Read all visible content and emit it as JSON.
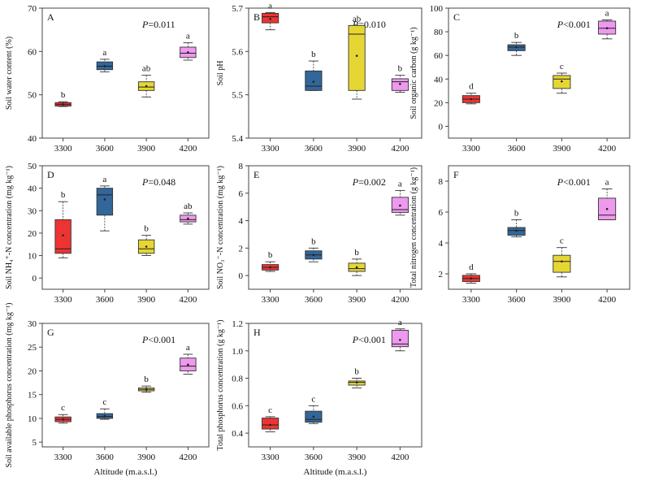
{
  "xlabel": "Altitude (m.a.s.l.)",
  "colors": {
    "3300": "#ee3333",
    "3600": "#336699",
    "3900": "#e6d633",
    "4200": "#ee99ee"
  },
  "chart_data": [
    {
      "type": "box",
      "panel": "A",
      "categories": [
        "3300",
        "3600",
        "3900",
        "4200"
      ],
      "ylabel": "Soil water content (%)",
      "pvalue": "P=0.011",
      "ylim": [
        40,
        70
      ],
      "yticks": [
        40,
        50,
        60,
        70
      ],
      "xlabel": "",
      "boxes": [
        {
          "min": 47.3,
          "q1": 47.4,
          "median": 47.8,
          "q3": 48.2,
          "max": 48.4,
          "mean": 47.8,
          "letter": "b"
        },
        {
          "min": 55.3,
          "q1": 55.8,
          "median": 56.6,
          "q3": 57.6,
          "max": 58.2,
          "mean": 56.6,
          "letter": "a"
        },
        {
          "min": 49.5,
          "q1": 51.0,
          "median": 51.8,
          "q3": 53.0,
          "max": 54.5,
          "mean": 52.0,
          "letter": "ab"
        },
        {
          "min": 58.0,
          "q1": 58.6,
          "median": 59.6,
          "q3": 61.0,
          "max": 62.0,
          "mean": 59.8,
          "letter": "a"
        }
      ]
    },
    {
      "type": "box",
      "panel": "B",
      "categories": [
        "3300",
        "3600",
        "3900",
        "4200"
      ],
      "ylabel": "Soil pH",
      "pvalue": "P=0.010",
      "ylim": [
        5.4,
        5.7
      ],
      "yticks": [
        5.4,
        5.5,
        5.6,
        5.7
      ],
      "xlabel": "",
      "boxes": [
        {
          "min": 5.65,
          "q1": 5.666,
          "median": 5.68,
          "q3": 5.688,
          "max": 5.69,
          "mean": 5.675,
          "letter": "a"
        },
        {
          "min": 5.51,
          "q1": 5.51,
          "median": 5.52,
          "q3": 5.555,
          "max": 5.578,
          "mean": 5.53,
          "letter": "b"
        },
        {
          "min": 5.49,
          "q1": 5.51,
          "median": 5.64,
          "q3": 5.66,
          "max": 5.66,
          "mean": 5.59,
          "letter": "ab"
        },
        {
          "min": 5.506,
          "q1": 5.51,
          "median": 5.53,
          "q3": 5.537,
          "max": 5.545,
          "mean": 5.525,
          "letter": "b"
        }
      ]
    },
    {
      "type": "box",
      "panel": "C",
      "categories": [
        "3300",
        "3600",
        "3900",
        "4200"
      ],
      "ylabel": "Soil organic carbon (g kg⁻¹)",
      "pvalue": "P<0.001",
      "ylim": [
        -10,
        100
      ],
      "yticks": [
        0,
        20,
        40,
        60,
        80,
        100
      ],
      "xlabel": "",
      "boxes": [
        {
          "min": 19,
          "q1": 20,
          "median": 23,
          "q3": 26,
          "max": 28,
          "mean": 23,
          "letter": "d"
        },
        {
          "min": 60,
          "q1": 64,
          "median": 67,
          "q3": 69,
          "max": 71,
          "mean": 67,
          "letter": "b"
        },
        {
          "min": 28,
          "q1": 32,
          "median": 40,
          "q3": 43,
          "max": 45,
          "mean": 38,
          "letter": "c"
        },
        {
          "min": 74,
          "q1": 78,
          "median": 83,
          "q3": 89,
          "max": 90,
          "mean": 83,
          "letter": "a"
        }
      ]
    },
    {
      "type": "box",
      "panel": "D",
      "categories": [
        "3300",
        "3600",
        "3900",
        "4200"
      ],
      "ylabel": "Soil NH₄⁺-N concentration (mg kg⁻¹)",
      "pvalue": "P=0.048",
      "ylim": [
        -5,
        50
      ],
      "yticks": [
        0,
        10,
        20,
        30,
        40,
        50
      ],
      "xlabel": "",
      "boxes": [
        {
          "min": 9,
          "q1": 11,
          "median": 13,
          "q3": 26,
          "max": 34,
          "mean": 19,
          "letter": "b"
        },
        {
          "min": 21,
          "q1": 28,
          "median": 37,
          "q3": 40,
          "max": 41,
          "mean": 35,
          "letter": "a"
        },
        {
          "min": 10,
          "q1": 11,
          "median": 13,
          "q3": 17,
          "max": 19,
          "mean": 14,
          "letter": "b"
        },
        {
          "min": 24,
          "q1": 25,
          "median": 26,
          "q3": 28,
          "max": 29,
          "mean": 26.5,
          "letter": "ab"
        }
      ]
    },
    {
      "type": "box",
      "panel": "E",
      "categories": [
        "3300",
        "3600",
        "3900",
        "4200"
      ],
      "ylabel": "Soil NO₃⁻-N concentration (mg kg⁻¹)",
      "pvalue": "P=0.002",
      "ylim": [
        -1,
        8
      ],
      "yticks": [
        0,
        2,
        4,
        6,
        8
      ],
      "xlabel": "",
      "boxes": [
        {
          "min": 0.3,
          "q1": 0.4,
          "median": 0.6,
          "q3": 0.8,
          "max": 1.0,
          "mean": 0.6,
          "letter": "b"
        },
        {
          "min": 1.0,
          "q1": 1.2,
          "median": 1.5,
          "q3": 1.8,
          "max": 2.0,
          "mean": 1.5,
          "letter": "b"
        },
        {
          "min": 0.0,
          "q1": 0.3,
          "median": 0.5,
          "q3": 0.9,
          "max": 1.2,
          "mean": 0.6,
          "letter": "b"
        },
        {
          "min": 4.4,
          "q1": 4.6,
          "median": 4.8,
          "q3": 5.7,
          "max": 6.2,
          "mean": 5.1,
          "letter": "a"
        }
      ]
    },
    {
      "type": "box",
      "panel": "F",
      "categories": [
        "3300",
        "3600",
        "3900",
        "4200"
      ],
      "ylabel": "Total nitrogen concentration (g kg⁻¹)",
      "pvalue": "P<0.001",
      "ylim": [
        1,
        9
      ],
      "yticks": [
        2,
        4,
        6,
        8
      ],
      "xlabel": "",
      "boxes": [
        {
          "min": 1.4,
          "q1": 1.5,
          "median": 1.7,
          "q3": 1.9,
          "max": 2.0,
          "mean": 1.7,
          "letter": "d"
        },
        {
          "min": 4.4,
          "q1": 4.5,
          "median": 4.8,
          "q3": 5.0,
          "max": 5.5,
          "mean": 4.8,
          "letter": "b"
        },
        {
          "min": 1.8,
          "q1": 2.1,
          "median": 2.8,
          "q3": 3.2,
          "max": 3.7,
          "mean": 2.8,
          "letter": "c"
        },
        {
          "min": 5.5,
          "q1": 5.5,
          "median": 5.8,
          "q3": 6.9,
          "max": 7.5,
          "mean": 6.2,
          "letter": "a"
        }
      ]
    },
    {
      "type": "box",
      "panel": "G",
      "categories": [
        "3300",
        "3600",
        "3900",
        "4200"
      ],
      "ylabel": "Soil available phosphorus concentration (mg kg⁻¹)",
      "pvalue": "P<0.001",
      "ylim": [
        4,
        30
      ],
      "yticks": [
        5,
        10,
        15,
        20,
        25,
        30
      ],
      "xlabel": "Altitude (m.a.s.l.)",
      "boxes": [
        {
          "min": 9.0,
          "q1": 9.3,
          "median": 9.8,
          "q3": 10.3,
          "max": 10.8,
          "mean": 9.8,
          "letter": "c"
        },
        {
          "min": 9.8,
          "q1": 10.0,
          "median": 10.4,
          "q3": 11.0,
          "max": 12.0,
          "mean": 10.5,
          "letter": "c"
        },
        {
          "min": 15.5,
          "q1": 15.8,
          "median": 16.1,
          "q3": 16.4,
          "max": 16.8,
          "mean": 16.1,
          "letter": "b"
        },
        {
          "min": 19.3,
          "q1": 20.0,
          "median": 21.0,
          "q3": 22.7,
          "max": 23.5,
          "mean": 21.3,
          "letter": "a"
        }
      ]
    },
    {
      "type": "box",
      "panel": "H",
      "categories": [
        "3300",
        "3600",
        "3900",
        "4200"
      ],
      "ylabel": "Total phosphorus concentration (g kg⁻¹)",
      "pvalue": "P<0.001",
      "ylim": [
        0.3,
        1.2
      ],
      "yticks": [
        0.4,
        0.6,
        0.8,
        1.0,
        1.2
      ],
      "xlabel": "Altitude (m.a.s.l.)",
      "boxes": [
        {
          "min": 0.41,
          "q1": 0.43,
          "median": 0.46,
          "q3": 0.51,
          "max": 0.52,
          "mean": 0.46,
          "letter": "c"
        },
        {
          "min": 0.47,
          "q1": 0.48,
          "median": 0.5,
          "q3": 0.56,
          "max": 0.6,
          "mean": 0.52,
          "letter": "c"
        },
        {
          "min": 0.73,
          "q1": 0.75,
          "median": 0.77,
          "q3": 0.78,
          "max": 0.8,
          "mean": 0.77,
          "letter": "b"
        },
        {
          "min": 1.0,
          "q1": 1.03,
          "median": 1.05,
          "q3": 1.15,
          "max": 1.16,
          "mean": 1.08,
          "letter": "a"
        }
      ]
    }
  ]
}
